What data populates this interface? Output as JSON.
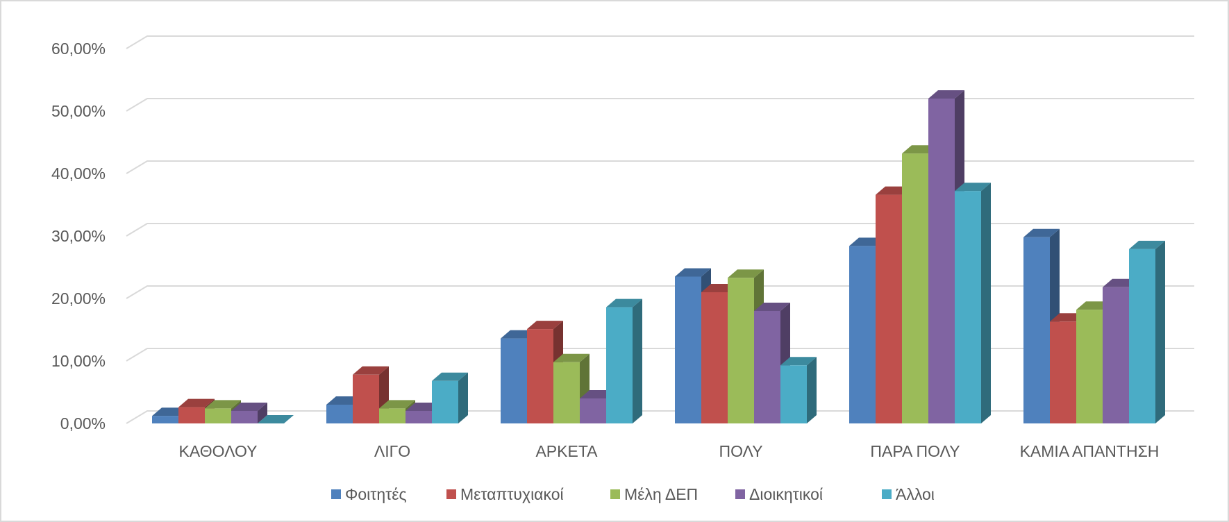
{
  "chart_data": {
    "type": "bar",
    "style": "3d-clustered-column",
    "categories": [
      "ΚΑΘΟΛΟΥ",
      "ΛΙΓΟ",
      "ΑΡΚΕΤΑ",
      "ΠΟΛΥ",
      "ΠΑΡΑ ΠΟΛΥ",
      "ΚΑΜΙΑ ΑΠΑΝΤΗΣΗ"
    ],
    "series": [
      {
        "name": "Φοιτητές",
        "color": "#4f81bd",
        "values": [
          1.2,
          3.0,
          13.6,
          23.5,
          28.4,
          29.8
        ]
      },
      {
        "name": "Μεταπτυχιακοί",
        "color": "#c0504d",
        "values": [
          2.6,
          7.8,
          15.1,
          21.0,
          36.6,
          16.3
        ]
      },
      {
        "name": "Μέλη ΔΕΠ",
        "color": "#9bbb59",
        "values": [
          2.4,
          2.4,
          9.8,
          23.3,
          43.2,
          18.2
        ]
      },
      {
        "name": "Διοικητικοί",
        "color": "#8064a2",
        "values": [
          2.0,
          2.0,
          4.0,
          18.0,
          52.0,
          21.8
        ]
      },
      {
        "name": "Άλλοι",
        "color": "#4bacc6",
        "values": [
          0.0,
          6.8,
          18.6,
          9.3,
          37.2,
          27.9
        ]
      }
    ],
    "y_ticks": [
      "0,00%",
      "10,00%",
      "20,00%",
      "30,00%",
      "40,00%",
      "50,00%",
      "60,00%"
    ],
    "ylim": [
      0,
      60
    ],
    "y_unit": "%",
    "grid": true,
    "legend_position": "bottom"
  }
}
